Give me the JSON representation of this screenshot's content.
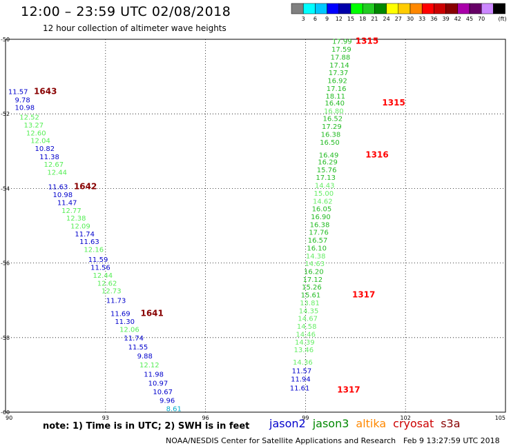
{
  "title": "12:00 – 23:59 UTC 02/08/2018",
  "subtitle": "12 hour collection of altimeter wave heights",
  "legend": {
    "unit": "(ft)",
    "colors": [
      "#808080",
      "#00ffff",
      "#00c8ff",
      "#0000ff",
      "#0000aa",
      "#00ff00",
      "#22cc22",
      "#008800",
      "#ffff00",
      "#ffcc00",
      "#ff8800",
      "#ff0000",
      "#cc0000",
      "#880000",
      "#aa00aa",
      "#660066",
      "#cc88ff",
      "#000000"
    ],
    "labels": [
      "3",
      "6",
      "9",
      "12",
      "15",
      "18",
      "21",
      "24",
      "27",
      "30",
      "33",
      "36",
      "39",
      "42",
      "45",
      "70"
    ]
  },
  "map": {
    "lon_range": [
      90,
      105
    ],
    "lat_range": [
      -60,
      -50
    ],
    "lon_ticks": [
      "90",
      "93",
      "96",
      "99",
      "102",
      "105"
    ],
    "lat_ticks": [
      "-50",
      "-52",
      "-54",
      "-56",
      "-58",
      "-60"
    ],
    "grid": "dotted"
  },
  "satellites": [
    {
      "name": "jason2",
      "color": "#0000cc"
    },
    {
      "name": "jason3",
      "color": "#008800"
    },
    {
      "name": "altika",
      "color": "#ff8800"
    },
    {
      "name": "cryosat",
      "color": "#cc0000"
    },
    {
      "name": "s3a",
      "color": "#880000"
    }
  ],
  "pass_labels": [
    {
      "text": "1643",
      "lon": 90.85,
      "lat": -51.4,
      "color": "#880000"
    },
    {
      "text": "1642",
      "lon": 92.05,
      "lat": -53.95,
      "color": "#880000"
    },
    {
      "text": "1641",
      "lon": 94.05,
      "lat": -57.35,
      "color": "#880000"
    },
    {
      "text": "1315",
      "lon": 100.5,
      "lat": -50.05,
      "color": "#ff0000"
    },
    {
      "text": "1315",
      "lon": 101.3,
      "lat": -51.7,
      "color": "#ff0000"
    },
    {
      "text": "1316",
      "lon": 100.8,
      "lat": -53.1,
      "color": "#ff0000"
    },
    {
      "text": "1317",
      "lon": 100.4,
      "lat": -56.85,
      "color": "#ff0000"
    },
    {
      "text": "1317",
      "lon": 99.95,
      "lat": -59.4,
      "color": "#ff0000"
    }
  ],
  "tracks": [
    {
      "name": "west",
      "points": [
        {
          "v": "11.57",
          "lon": 90.08,
          "lat": -51.4,
          "c": "#0000cc"
        },
        {
          "v": "9.78",
          "lon": 90.28,
          "lat": -51.62,
          "c": "#0000cc"
        },
        {
          "v": "10.98",
          "lon": 90.28,
          "lat": -51.82,
          "c": "#0000cc"
        },
        {
          "v": "12.52",
          "lon": 90.42,
          "lat": -52.08,
          "c": "#55ee55"
        },
        {
          "v": "13.27",
          "lon": 90.55,
          "lat": -52.29,
          "c": "#55ee55"
        },
        {
          "v": "12.60",
          "lon": 90.62,
          "lat": -52.5,
          "c": "#55ee55"
        },
        {
          "v": "12.04",
          "lon": 90.75,
          "lat": -52.71,
          "c": "#55ee55"
        },
        {
          "v": "10.82",
          "lon": 90.88,
          "lat": -52.92,
          "c": "#0000cc"
        },
        {
          "v": "11.38",
          "lon": 91.02,
          "lat": -53.14,
          "c": "#0000cc"
        },
        {
          "v": "12.67",
          "lon": 91.15,
          "lat": -53.35,
          "c": "#55ee55"
        },
        {
          "v": "12.44",
          "lon": 91.25,
          "lat": -53.56,
          "c": "#55ee55"
        },
        {
          "v": "11.63",
          "lon": 91.28,
          "lat": -53.95,
          "c": "#0000cc"
        },
        {
          "v": "10.98",
          "lon": 91.42,
          "lat": -54.16,
          "c": "#0000cc"
        },
        {
          "v": "11.47",
          "lon": 91.55,
          "lat": -54.37,
          "c": "#0000cc"
        },
        {
          "v": "12.77",
          "lon": 91.68,
          "lat": -54.58,
          "c": "#55ee55"
        },
        {
          "v": "12.38",
          "lon": 91.82,
          "lat": -54.79,
          "c": "#55ee55"
        },
        {
          "v": "12.09",
          "lon": 91.95,
          "lat": -55.0,
          "c": "#55ee55"
        },
        {
          "v": "11.74",
          "lon": 92.08,
          "lat": -55.21,
          "c": "#0000cc"
        },
        {
          "v": "11.63",
          "lon": 92.22,
          "lat": -55.42,
          "c": "#0000cc"
        },
        {
          "v": "12.16",
          "lon": 92.35,
          "lat": -55.63,
          "c": "#55ee55"
        },
        {
          "v": "11.59",
          "lon": 92.48,
          "lat": -55.9,
          "c": "#0000cc"
        },
        {
          "v": "11.56",
          "lon": 92.55,
          "lat": -56.11,
          "c": "#0000cc"
        },
        {
          "v": "12.44",
          "lon": 92.62,
          "lat": -56.32,
          "c": "#55ee55"
        },
        {
          "v": "12.62",
          "lon": 92.75,
          "lat": -56.53,
          "c": "#55ee55"
        },
        {
          "v": "12.73",
          "lon": 92.88,
          "lat": -56.74,
          "c": "#55ee55"
        },
        {
          "v": "11.73",
          "lon": 93.02,
          "lat": -57.0,
          "c": "#0000cc"
        },
        {
          "v": "11.69",
          "lon": 93.15,
          "lat": -57.35,
          "c": "#0000cc"
        },
        {
          "v": "11.30",
          "lon": 93.28,
          "lat": -57.56,
          "c": "#0000cc"
        },
        {
          "v": "12.06",
          "lon": 93.42,
          "lat": -57.77,
          "c": "#55ee55"
        },
        {
          "v": "11.74",
          "lon": 93.55,
          "lat": -58.0,
          "c": "#0000cc"
        },
        {
          "v": "11.55",
          "lon": 93.68,
          "lat": -58.24,
          "c": "#0000cc"
        },
        {
          "v": "9.88",
          "lon": 93.95,
          "lat": -58.48,
          "c": "#0000cc"
        },
        {
          "v": "12.12",
          "lon": 94.02,
          "lat": -58.72,
          "c": "#55ee55"
        },
        {
          "v": "11.98",
          "lon": 94.15,
          "lat": -58.97,
          "c": "#0000cc"
        },
        {
          "v": "10.97",
          "lon": 94.28,
          "lat": -59.21,
          "c": "#0000cc"
        },
        {
          "v": "10.67",
          "lon": 94.42,
          "lat": -59.45,
          "c": "#0000cc"
        },
        {
          "v": "9.96",
          "lon": 94.62,
          "lat": -59.68,
          "c": "#0000cc"
        },
        {
          "v": "8.61",
          "lon": 94.82,
          "lat": -59.9,
          "c": "#00aacc"
        }
      ]
    },
    {
      "name": "east",
      "points": [
        {
          "v": "17.99",
          "lon": 99.8,
          "lat": -50.05,
          "c": "#22bb22"
        },
        {
          "v": "17.59",
          "lon": 99.78,
          "lat": -50.26,
          "c": "#22bb22"
        },
        {
          "v": "17.88",
          "lon": 99.75,
          "lat": -50.47,
          "c": "#22bb22"
        },
        {
          "v": "17.14",
          "lon": 99.72,
          "lat": -50.68,
          "c": "#22bb22"
        },
        {
          "v": "17.37",
          "lon": 99.69,
          "lat": -50.89,
          "c": "#22bb22"
        },
        {
          "v": "16.92",
          "lon": 99.66,
          "lat": -51.1,
          "c": "#22bb22"
        },
        {
          "v": "17.16",
          "lon": 99.63,
          "lat": -51.31,
          "c": "#22bb22"
        },
        {
          "v": "18.11",
          "lon": 99.6,
          "lat": -51.52,
          "c": "#22bb22"
        },
        {
          "v": "16.40",
          "lon": 99.58,
          "lat": -51.7,
          "c": "#22bb22"
        },
        {
          "v": "16.80",
          "lon": 99.55,
          "lat": -51.91,
          "c": "#66ee66"
        },
        {
          "v": "16.52",
          "lon": 99.52,
          "lat": -52.12,
          "c": "#22bb22"
        },
        {
          "v": "17.29",
          "lon": 99.49,
          "lat": -52.33,
          "c": "#22bb22"
        },
        {
          "v": "16.38",
          "lon": 99.46,
          "lat": -52.54,
          "c": "#22bb22"
        },
        {
          "v": "16.50",
          "lon": 99.43,
          "lat": -52.75,
          "c": "#22bb22"
        },
        {
          "v": "16.49",
          "lon": 99.4,
          "lat": -53.1,
          "c": "#22bb22"
        },
        {
          "v": "16.29",
          "lon": 99.37,
          "lat": -53.28,
          "c": "#22bb22"
        },
        {
          "v": "15.76",
          "lon": 99.34,
          "lat": -53.49,
          "c": "#22bb22"
        },
        {
          "v": "17.13",
          "lon": 99.31,
          "lat": -53.7,
          "c": "#22bb22"
        },
        {
          "v": "14.43",
          "lon": 99.28,
          "lat": -53.91,
          "c": "#66ee66"
        },
        {
          "v": "15.00",
          "lon": 99.25,
          "lat": -54.12,
          "c": "#66ee66"
        },
        {
          "v": "14.62",
          "lon": 99.22,
          "lat": -54.33,
          "c": "#66ee66"
        },
        {
          "v": "16.05",
          "lon": 99.19,
          "lat": -54.54,
          "c": "#22bb22"
        },
        {
          "v": "16.90",
          "lon": 99.16,
          "lat": -54.75,
          "c": "#22bb22"
        },
        {
          "v": "16.38",
          "lon": 99.13,
          "lat": -54.96,
          "c": "#22bb22"
        },
        {
          "v": "17.76",
          "lon": 99.1,
          "lat": -55.17,
          "c": "#22bb22"
        },
        {
          "v": "16.57",
          "lon": 99.07,
          "lat": -55.38,
          "c": "#22bb22"
        },
        {
          "v": "16.10",
          "lon": 99.04,
          "lat": -55.59,
          "c": "#22bb22"
        },
        {
          "v": "14.38",
          "lon": 99.01,
          "lat": -55.8,
          "c": "#66ee66"
        },
        {
          "v": "14.63",
          "lon": 98.98,
          "lat": -56.01,
          "c": "#66ee66"
        },
        {
          "v": "16.20",
          "lon": 98.95,
          "lat": -56.22,
          "c": "#22bb22"
        },
        {
          "v": "17.12",
          "lon": 98.92,
          "lat": -56.43,
          "c": "#22bb22"
        },
        {
          "v": "15.26",
          "lon": 98.89,
          "lat": -56.64,
          "c": "#22bb22"
        },
        {
          "v": "15.61",
          "lon": 98.86,
          "lat": -56.85,
          "c": "#22bb22"
        },
        {
          "v": "13.81",
          "lon": 98.83,
          "lat": -57.06,
          "c": "#66ee66"
        },
        {
          "v": "14.35",
          "lon": 98.8,
          "lat": -57.27,
          "c": "#66ee66"
        },
        {
          "v": "14.67",
          "lon": 98.77,
          "lat": -57.48,
          "c": "#66ee66"
        },
        {
          "v": "14.58",
          "lon": 98.74,
          "lat": -57.69,
          "c": "#66ee66"
        },
        {
          "v": "14.46",
          "lon": 98.71,
          "lat": -57.9,
          "c": "#66ee66"
        },
        {
          "v": "14.39",
          "lon": 98.68,
          "lat": -58.11,
          "c": "#66ee66"
        },
        {
          "v": "13.46",
          "lon": 98.65,
          "lat": -58.32,
          "c": "#66ee66"
        },
        {
          "v": "14.36",
          "lon": 98.62,
          "lat": -58.65,
          "c": "#66ee66"
        },
        {
          "v": "11.57",
          "lon": 98.59,
          "lat": -58.88,
          "c": "#0000cc"
        },
        {
          "v": "11.94",
          "lon": 98.56,
          "lat": -59.1,
          "c": "#0000cc"
        },
        {
          "v": "11.61",
          "lon": 98.53,
          "lat": -59.34,
          "c": "#0000cc"
        }
      ]
    }
  ],
  "note": "note: 1) Time is in UTC; 2) SWH is in feet",
  "credit": "NOAA/NESDIS Center for Satellite Applications and Research",
  "timestamp": "Feb  9 13:27:59 UTC 2018"
}
